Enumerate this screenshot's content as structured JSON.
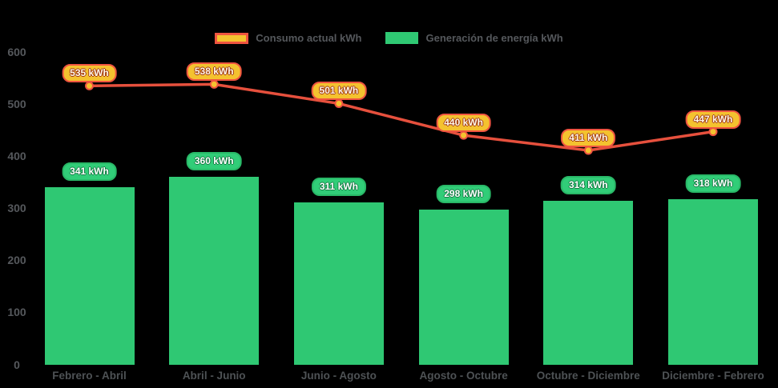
{
  "legend": {
    "items": [
      {
        "label": "Consumo actual kWh",
        "series_type": "line"
      },
      {
        "label": "Generación de energía kWh",
        "series_type": "bar"
      }
    ]
  },
  "chart_data": {
    "type": "mixed",
    "categories": [
      "Febrero - Abril",
      "Abril - Junio",
      "Junio - Agosto",
      "Agosto - Octubre",
      "Octubre - Diciembre",
      "Diciembre - Febrero"
    ],
    "series": [
      {
        "name": "Consumo actual kWh",
        "type": "line",
        "values": [
          535,
          538,
          501,
          440,
          411,
          447
        ],
        "point_labels": [
          "535 kWh",
          "538 kWh",
          "501 kWh",
          "440 kWh",
          "411 kWh",
          "447 kWh"
        ],
        "color": "#e6503d"
      },
      {
        "name": "Generación de energía kWh",
        "type": "bar",
        "values": [
          341,
          360,
          311,
          298,
          314,
          318
        ],
        "point_labels": [
          "341 kWh",
          "360 kWh",
          "311 kWh",
          "298 kWh",
          "314 kWh",
          "318 kWh"
        ],
        "color": "#2fc873"
      }
    ],
    "title": "",
    "xlabel": "",
    "ylabel": "",
    "ylim": [
      0,
      600
    ],
    "yticks": [
      0,
      100,
      200,
      300,
      400,
      500,
      600
    ],
    "grid": false,
    "legend_position": "top",
    "background": "#000000"
  },
  "colors": {
    "background": "#000000",
    "bar_fill": "#2fc873",
    "line_stroke": "#e6503d",
    "marker_fill": "#f4c22f",
    "marker_border": "#ef5440",
    "line_badge_bg": "#f4c22f",
    "line_badge_border": "#ef5440",
    "line_badge_text": "#fffbe8",
    "bar_badge_bg": "#31cd78",
    "bar_badge_text": "#ffffff",
    "axis_text": "#55585c"
  }
}
